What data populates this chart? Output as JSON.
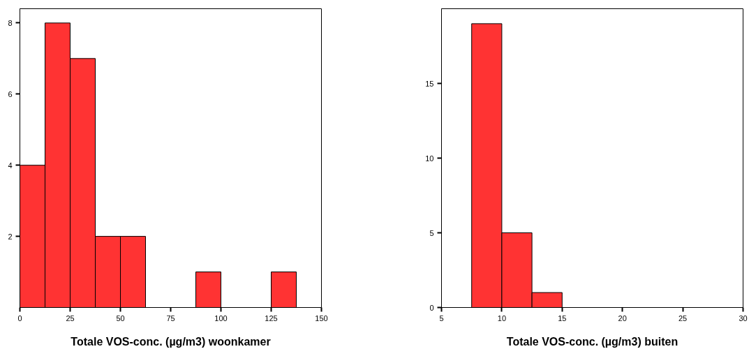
{
  "chart_data": [
    {
      "type": "histogram",
      "xlabel": "Totale VOS-conc. (µg/m3) woonkamer",
      "bins": [
        0,
        12.5,
        25,
        37.5,
        50,
        62.5,
        75,
        87.5,
        100,
        112.5,
        125,
        137.5
      ],
      "values": [
        4,
        8,
        7,
        2,
        2,
        0,
        0,
        1,
        0,
        0,
        1
      ],
      "color": "#ff3333",
      "xlim": [
        0,
        150
      ],
      "xticks": [
        0,
        25,
        50,
        75,
        100,
        125,
        150
      ],
      "ylim": [
        0,
        8.4
      ],
      "yticks": [
        2,
        4,
        6,
        8
      ],
      "grid": false
    },
    {
      "type": "histogram",
      "xlabel": "Totale VOS-conc. (µg/m3) buiten",
      "bins": [
        7.5,
        10,
        12.5,
        15
      ],
      "values": [
        19,
        5,
        1
      ],
      "color": "#ff3333",
      "xlim": [
        5,
        30
      ],
      "xticks": [
        5,
        10,
        15,
        20,
        25,
        30
      ],
      "ylim": [
        0,
        20
      ],
      "yticks": [
        0,
        5,
        10,
        15
      ],
      "grid": false
    }
  ]
}
